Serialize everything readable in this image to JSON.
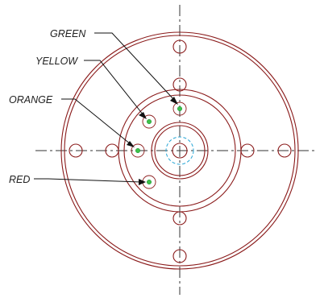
{
  "labels": {
    "green": "GREEN",
    "yellow": "YELLOW",
    "orange": "ORANGE",
    "red": "RED"
  },
  "colors": {
    "outline": "#8a1a1a",
    "centerline": "#333333",
    "hidden_circle": "#2ba7d6",
    "marker_dot": "#3cc24a",
    "leader": "#111111"
  }
}
